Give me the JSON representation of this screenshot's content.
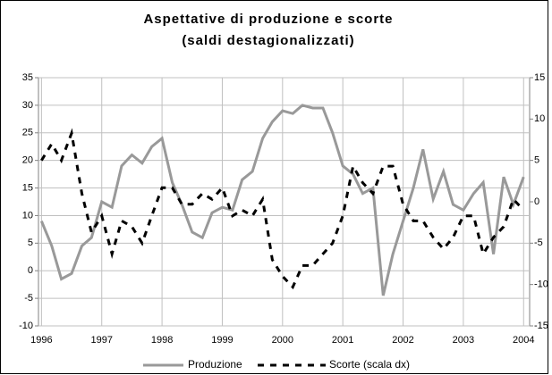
{
  "chart_data": {
    "type": "line",
    "title": "Aspettative di produzione e scorte",
    "subtitle": "(saldi destagionalizzati)",
    "x": [
      1996,
      1996.17,
      1996.33,
      1996.5,
      1996.67,
      1996.83,
      1997,
      1997.17,
      1997.33,
      1997.5,
      1997.67,
      1997.83,
      1998,
      1998.17,
      1998.33,
      1998.5,
      1998.67,
      1998.83,
      1999,
      1999.17,
      1999.33,
      1999.5,
      1999.67,
      1999.83,
      2000,
      2000.17,
      2000.33,
      2000.5,
      2000.67,
      2000.83,
      2001,
      2001.17,
      2001.33,
      2001.5,
      2001.67,
      2001.83,
      2002,
      2002.17,
      2002.33,
      2002.5,
      2002.67,
      2002.83,
      2003,
      2003.17,
      2003.33,
      2003.5,
      2003.67,
      2003.83,
      2004
    ],
    "series": [
      {
        "name": "Produzione",
        "color": "#999999",
        "axis": "y",
        "values": [
          9,
          4.5,
          -1.5,
          -0.5,
          4.5,
          6,
          12.5,
          11.5,
          19,
          21,
          19.5,
          22.5,
          24,
          16,
          12,
          7,
          6,
          10.5,
          11.5,
          11,
          16.5,
          18,
          24,
          27,
          29,
          28.5,
          30,
          29.5,
          29.5,
          25,
          19,
          17.5,
          14,
          15,
          -4.5,
          3,
          9,
          15,
          22,
          13,
          18,
          12,
          11,
          14,
          16,
          3,
          17,
          12,
          17
        ]
      },
      {
        "name": "Scorte (scala dx)",
        "color": "#000000",
        "axis": "y2",
        "values": [
          5,
          7,
          5,
          8.3,
          1,
          -3.7,
          -1.7,
          -6.3,
          -2.3,
          -3,
          -5,
          -1.7,
          1.7,
          1.7,
          -0.3,
          -0.3,
          1,
          0.3,
          1.7,
          -1.7,
          -1,
          -1.7,
          0.3,
          -7,
          -9,
          -10.3,
          -7.7,
          -7.7,
          -6.3,
          -5,
          -1.7,
          4.3,
          2.3,
          1,
          4.3,
          4.3,
          -0.3,
          -2.3,
          -2.3,
          -4.3,
          -5.7,
          -4.3,
          -1.7,
          -1.7,
          -6.3,
          -4.3,
          -3,
          0.3,
          -1
        ]
      }
    ],
    "xlim": [
      1995.95,
      2004.1
    ],
    "xticks": [
      1996,
      1997,
      1998,
      1999,
      2000,
      2001,
      2002,
      2003,
      2004
    ],
    "ylim": [
      -10,
      35
    ],
    "yticks": [
      -10,
      -5,
      0,
      5,
      10,
      15,
      20,
      25,
      30,
      35
    ],
    "y2lim": [
      -15,
      15
    ],
    "y2ticks": [
      -15,
      -10,
      -5,
      0,
      5,
      10,
      15
    ],
    "grid": true,
    "legend": "bottom"
  }
}
